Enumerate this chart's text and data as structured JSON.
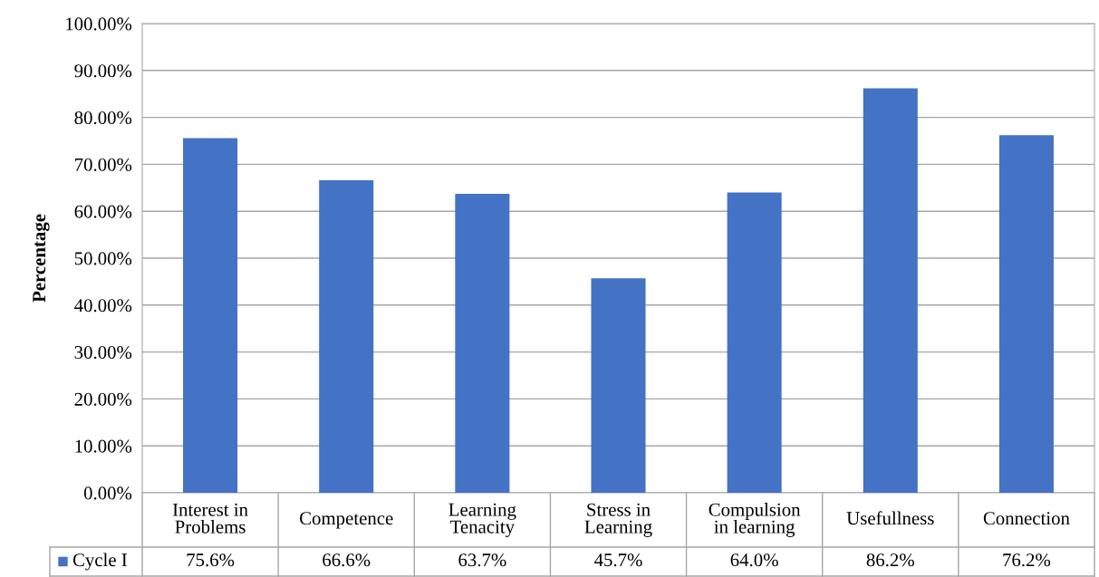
{
  "chart_data": {
    "type": "bar",
    "ylabel": "Percentage",
    "categories": [
      "Interest in\nProblems",
      "Competence",
      "Learning\nTenacity",
      "Stress in\nLearning",
      "Compulsion\nin learning",
      "Usefullness",
      "Connection"
    ],
    "series": [
      {
        "name": "Cycle I",
        "color": "#4472c4",
        "values": [
          75.6,
          66.6,
          63.7,
          45.7,
          64.0,
          86.2,
          76.2
        ],
        "value_labels": [
          "75.6%",
          "66.6%",
          "63.7%",
          "45.7%",
          "64.0%",
          "86.2%",
          "76.2%"
        ]
      }
    ],
    "ylim": [
      0,
      100
    ],
    "yticks": [
      {
        "value": 0,
        "label": "0.00%"
      },
      {
        "value": 10,
        "label": "10.00%"
      },
      {
        "value": 20,
        "label": "20.00%"
      },
      {
        "value": 30,
        "label": "30.00%"
      },
      {
        "value": 40,
        "label": "40.00%"
      },
      {
        "value": 50,
        "label": "50.00%"
      },
      {
        "value": 60,
        "label": "60.00%"
      },
      {
        "value": 70,
        "label": "70.00%"
      },
      {
        "value": 80,
        "label": "80.00%"
      },
      {
        "value": 90,
        "label": "90.00%"
      },
      {
        "value": 100,
        "label": "100.00%"
      }
    ],
    "grid": "y",
    "legend": "bottom"
  }
}
